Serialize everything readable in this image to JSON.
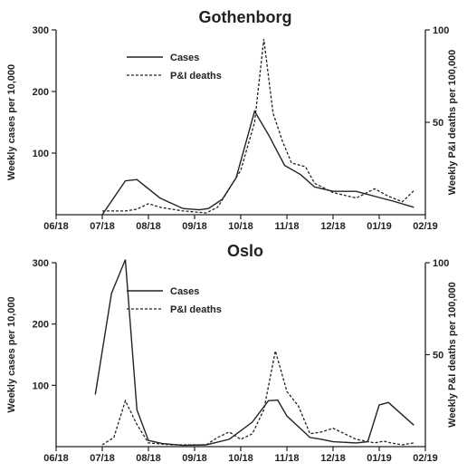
{
  "chart_data": [
    {
      "type": "line",
      "title": "Gothenborg",
      "ylabel": "Weekly cases per 10,000",
      "y2label": "Weekly P&I deaths per 100,000",
      "x_ticks": [
        "06/18",
        "07/18",
        "08/18",
        "09/18",
        "10/18",
        "11/18",
        "12/18",
        "01/19",
        "02/19"
      ],
      "xlim": [
        0,
        8
      ],
      "ylim": [
        0,
        300
      ],
      "y_ticks": [
        100,
        200,
        300
      ],
      "y2lim": [
        0,
        100
      ],
      "y2_ticks": [
        50,
        100
      ],
      "grid": false,
      "legend": "top-left",
      "series": [
        {
          "name": "Cases",
          "axis": "left",
          "style": "solid",
          "x": [
            1.0,
            1.5,
            1.75,
            2.25,
            2.75,
            3.1,
            3.3,
            3.6,
            3.9,
            4.3,
            4.6,
            4.95,
            5.3,
            5.6,
            6.0,
            6.5,
            7.0,
            7.3,
            7.75
          ],
          "y": [
            0,
            55,
            57,
            27,
            10,
            8,
            10,
            25,
            60,
            168,
            130,
            80,
            65,
            45,
            38,
            38,
            28,
            22,
            12
          ]
        },
        {
          "name": "P&I deaths",
          "axis": "right",
          "style": "dashed",
          "x": [
            1.0,
            1.5,
            1.75,
            2.0,
            2.25,
            2.75,
            3.25,
            3.5,
            4.0,
            4.3,
            4.5,
            4.7,
            4.9,
            5.1,
            5.4,
            5.6,
            6.0,
            6.5,
            6.9,
            7.2,
            7.5,
            7.75
          ],
          "y": [
            2,
            2,
            3,
            6,
            4,
            2,
            1,
            4,
            24,
            50,
            95,
            55,
            40,
            28,
            26,
            17,
            12,
            9,
            14,
            10,
            7,
            13
          ]
        }
      ]
    },
    {
      "type": "line",
      "title": "Oslo",
      "ylabel": "Weekly cases per 10,000",
      "y2label": "Weekly P&I deaths per 100,000",
      "x_ticks": [
        "06/18",
        "07/18",
        "08/18",
        "09/18",
        "10/18",
        "11/18",
        "12/18",
        "01/19",
        "02/19"
      ],
      "xlim": [
        0,
        8
      ],
      "ylim": [
        0,
        300
      ],
      "y_ticks": [
        100,
        200,
        300
      ],
      "y2lim": [
        0,
        100
      ],
      "y2_ticks": [
        50,
        100
      ],
      "grid": false,
      "legend": "top-center",
      "series": [
        {
          "name": "Cases",
          "axis": "left",
          "style": "solid",
          "x": [
            0.85,
            1.2,
            1.5,
            1.75,
            2.0,
            2.3,
            2.75,
            3.25,
            3.75,
            4.25,
            4.6,
            4.8,
            5.0,
            5.5,
            5.75,
            6.0,
            6.5,
            6.75,
            7.0,
            7.2,
            7.75
          ],
          "y": [
            85,
            250,
            305,
            60,
            10,
            5,
            2,
            3,
            12,
            40,
            75,
            76,
            50,
            15,
            12,
            8,
            6,
            8,
            68,
            72,
            35
          ]
        },
        {
          "name": "P&I deaths",
          "axis": "right",
          "style": "dashed",
          "x": [
            1.0,
            1.25,
            1.5,
            1.75,
            2.0,
            2.5,
            3.0,
            3.25,
            3.5,
            3.75,
            4.0,
            4.25,
            4.5,
            4.75,
            5.0,
            5.25,
            5.5,
            5.75,
            6.0,
            6.5,
            6.9,
            7.1,
            7.25,
            7.5,
            7.75
          ],
          "y": [
            1,
            5,
            25,
            12,
            2,
            1,
            1,
            1,
            5,
            8,
            4,
            7,
            20,
            52,
            30,
            22,
            7,
            8,
            10,
            4,
            2,
            3,
            2,
            1,
            2
          ]
        }
      ]
    }
  ]
}
